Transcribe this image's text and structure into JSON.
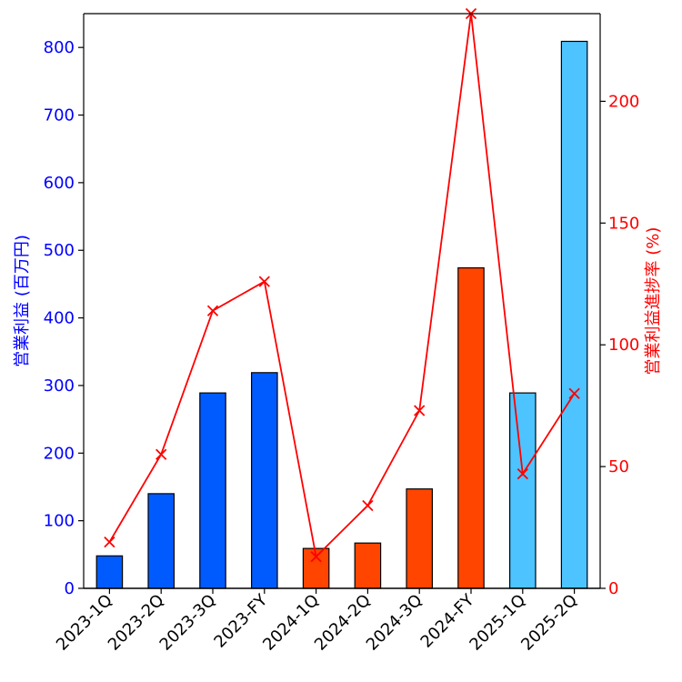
{
  "chart_data": {
    "type": "bar",
    "categories": [
      "2023-1Q",
      "2023-2Q",
      "2023-3Q",
      "2023-FY",
      "2024-1Q",
      "2024-2Q",
      "2024-3Q",
      "2024-FY",
      "2025-1Q",
      "2025-2Q"
    ],
    "series": [
      {
        "type": "bar",
        "axis": "left",
        "values": [
          48,
          140,
          289,
          319,
          59,
          67,
          147,
          474,
          289,
          809
        ],
        "colors": [
          "#005bff",
          "#005bff",
          "#005bff",
          "#005bff",
          "#ff4500",
          "#ff4500",
          "#ff4500",
          "#ff4500",
          "#4dc3ff",
          "#4dc3ff"
        ]
      },
      {
        "type": "line",
        "axis": "right",
        "marker": "x",
        "color": "#ff0000",
        "values": [
          19,
          55,
          114,
          126,
          13,
          34,
          73,
          236,
          47,
          80
        ]
      }
    ],
    "ylabel": "営業利益 (百万円)",
    "ylabel_right": "営業利益進捗率 (%)",
    "ylim": [
      0,
      850
    ],
    "ylim_right": [
      0,
      236
    ],
    "yticks": [
      0,
      100,
      200,
      300,
      400,
      500,
      600,
      700,
      800
    ],
    "yticks_right": [
      0,
      50,
      100,
      150,
      200
    ],
    "left_axis_color": "#0000ff",
    "right_axis_color": "#ff0000",
    "grid": false
  }
}
